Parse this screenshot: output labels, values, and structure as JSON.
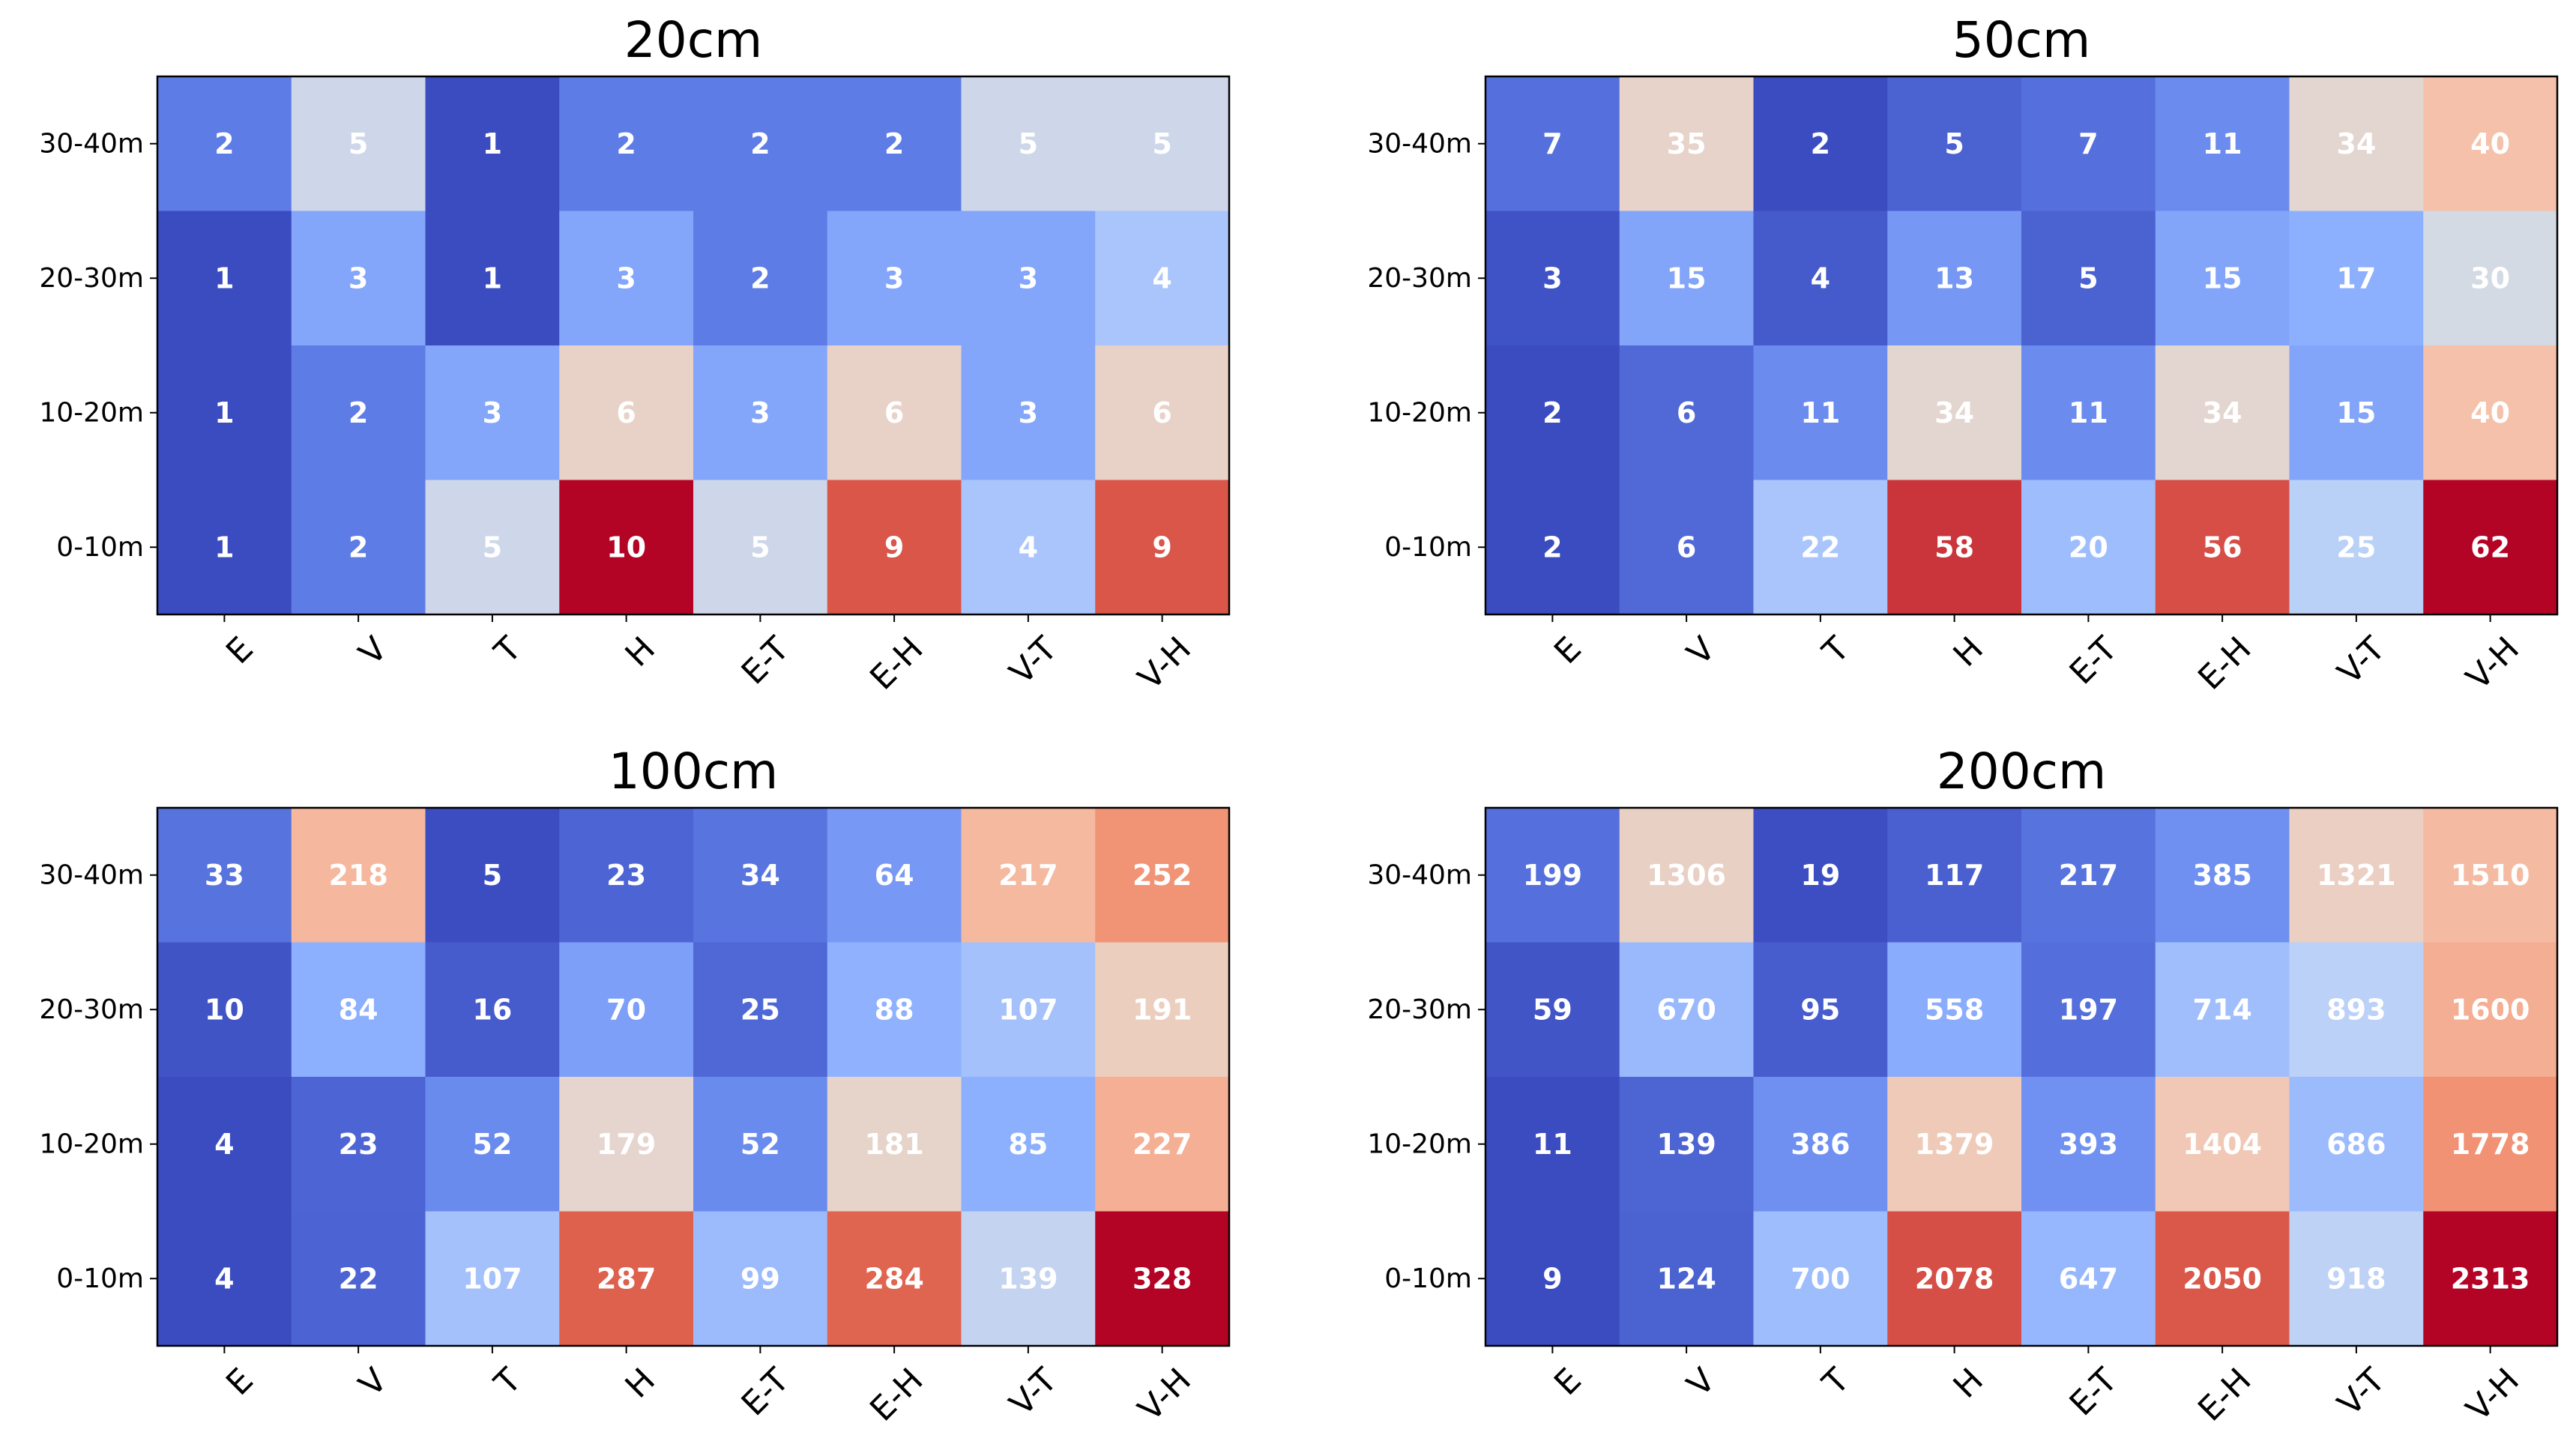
{
  "chart_data": [
    {
      "type": "heatmap",
      "title": "20cm",
      "x_categories": [
        "E",
        "V",
        "T",
        "H",
        "E-T",
        "E-H",
        "V-T",
        "V-H"
      ],
      "y_categories": [
        "30-40m",
        "20-30m",
        "10-20m",
        "0-10m"
      ],
      "values": [
        [
          2,
          5,
          1,
          2,
          2,
          2,
          5,
          5
        ],
        [
          1,
          3,
          1,
          3,
          2,
          3,
          3,
          4
        ],
        [
          1,
          2,
          3,
          6,
          3,
          6,
          3,
          6
        ],
        [
          1,
          2,
          5,
          10,
          5,
          9,
          4,
          9
        ]
      ],
      "colormap": "coolwarm"
    },
    {
      "type": "heatmap",
      "title": "50cm",
      "x_categories": [
        "E",
        "V",
        "T",
        "H",
        "E-T",
        "E-H",
        "V-T",
        "V-H"
      ],
      "y_categories": [
        "30-40m",
        "20-30m",
        "10-20m",
        "0-10m"
      ],
      "values": [
        [
          7,
          35,
          2,
          5,
          7,
          11,
          34,
          40
        ],
        [
          3,
          15,
          4,
          13,
          5,
          15,
          17,
          30
        ],
        [
          2,
          6,
          11,
          34,
          11,
          34,
          15,
          40
        ],
        [
          2,
          6,
          22,
          58,
          20,
          56,
          25,
          62
        ]
      ],
      "colormap": "coolwarm"
    },
    {
      "type": "heatmap",
      "title": "100cm",
      "x_categories": [
        "E",
        "V",
        "T",
        "H",
        "E-T",
        "E-H",
        "V-T",
        "V-H"
      ],
      "y_categories": [
        "30-40m",
        "20-30m",
        "10-20m",
        "0-10m"
      ],
      "values": [
        [
          33,
          218,
          5,
          23,
          34,
          64,
          217,
          252
        ],
        [
          10,
          84,
          16,
          70,
          25,
          88,
          107,
          191
        ],
        [
          4,
          23,
          52,
          179,
          52,
          181,
          85,
          227
        ],
        [
          4,
          22,
          107,
          287,
          99,
          284,
          139,
          328
        ]
      ],
      "colormap": "coolwarm"
    },
    {
      "type": "heatmap",
      "title": "200cm",
      "x_categories": [
        "E",
        "V",
        "T",
        "H",
        "E-T",
        "E-H",
        "V-T",
        "V-H"
      ],
      "y_categories": [
        "30-40m",
        "20-30m",
        "10-20m",
        "0-10m"
      ],
      "values": [
        [
          199,
          1306,
          19,
          117,
          217,
          385,
          1321,
          1510
        ],
        [
          59,
          670,
          95,
          558,
          197,
          714,
          893,
          1600
        ],
        [
          11,
          139,
          386,
          1379,
          393,
          1404,
          686,
          1778
        ],
        [
          9,
          124,
          700,
          2078,
          647,
          2050,
          918,
          2313
        ]
      ],
      "colormap": "coolwarm"
    }
  ]
}
